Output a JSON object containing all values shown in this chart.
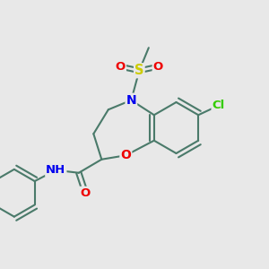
{
  "bg_color": "#e8e8e8",
  "bond_color": "#4a7a6a",
  "bond_width": 1.5,
  "atom_colors": {
    "N": "#0000ee",
    "O": "#ee0000",
    "S": "#cccc00",
    "Cl": "#33cc00",
    "C": "#333333"
  },
  "figsize": [
    3.0,
    3.0
  ],
  "dpi": 100
}
